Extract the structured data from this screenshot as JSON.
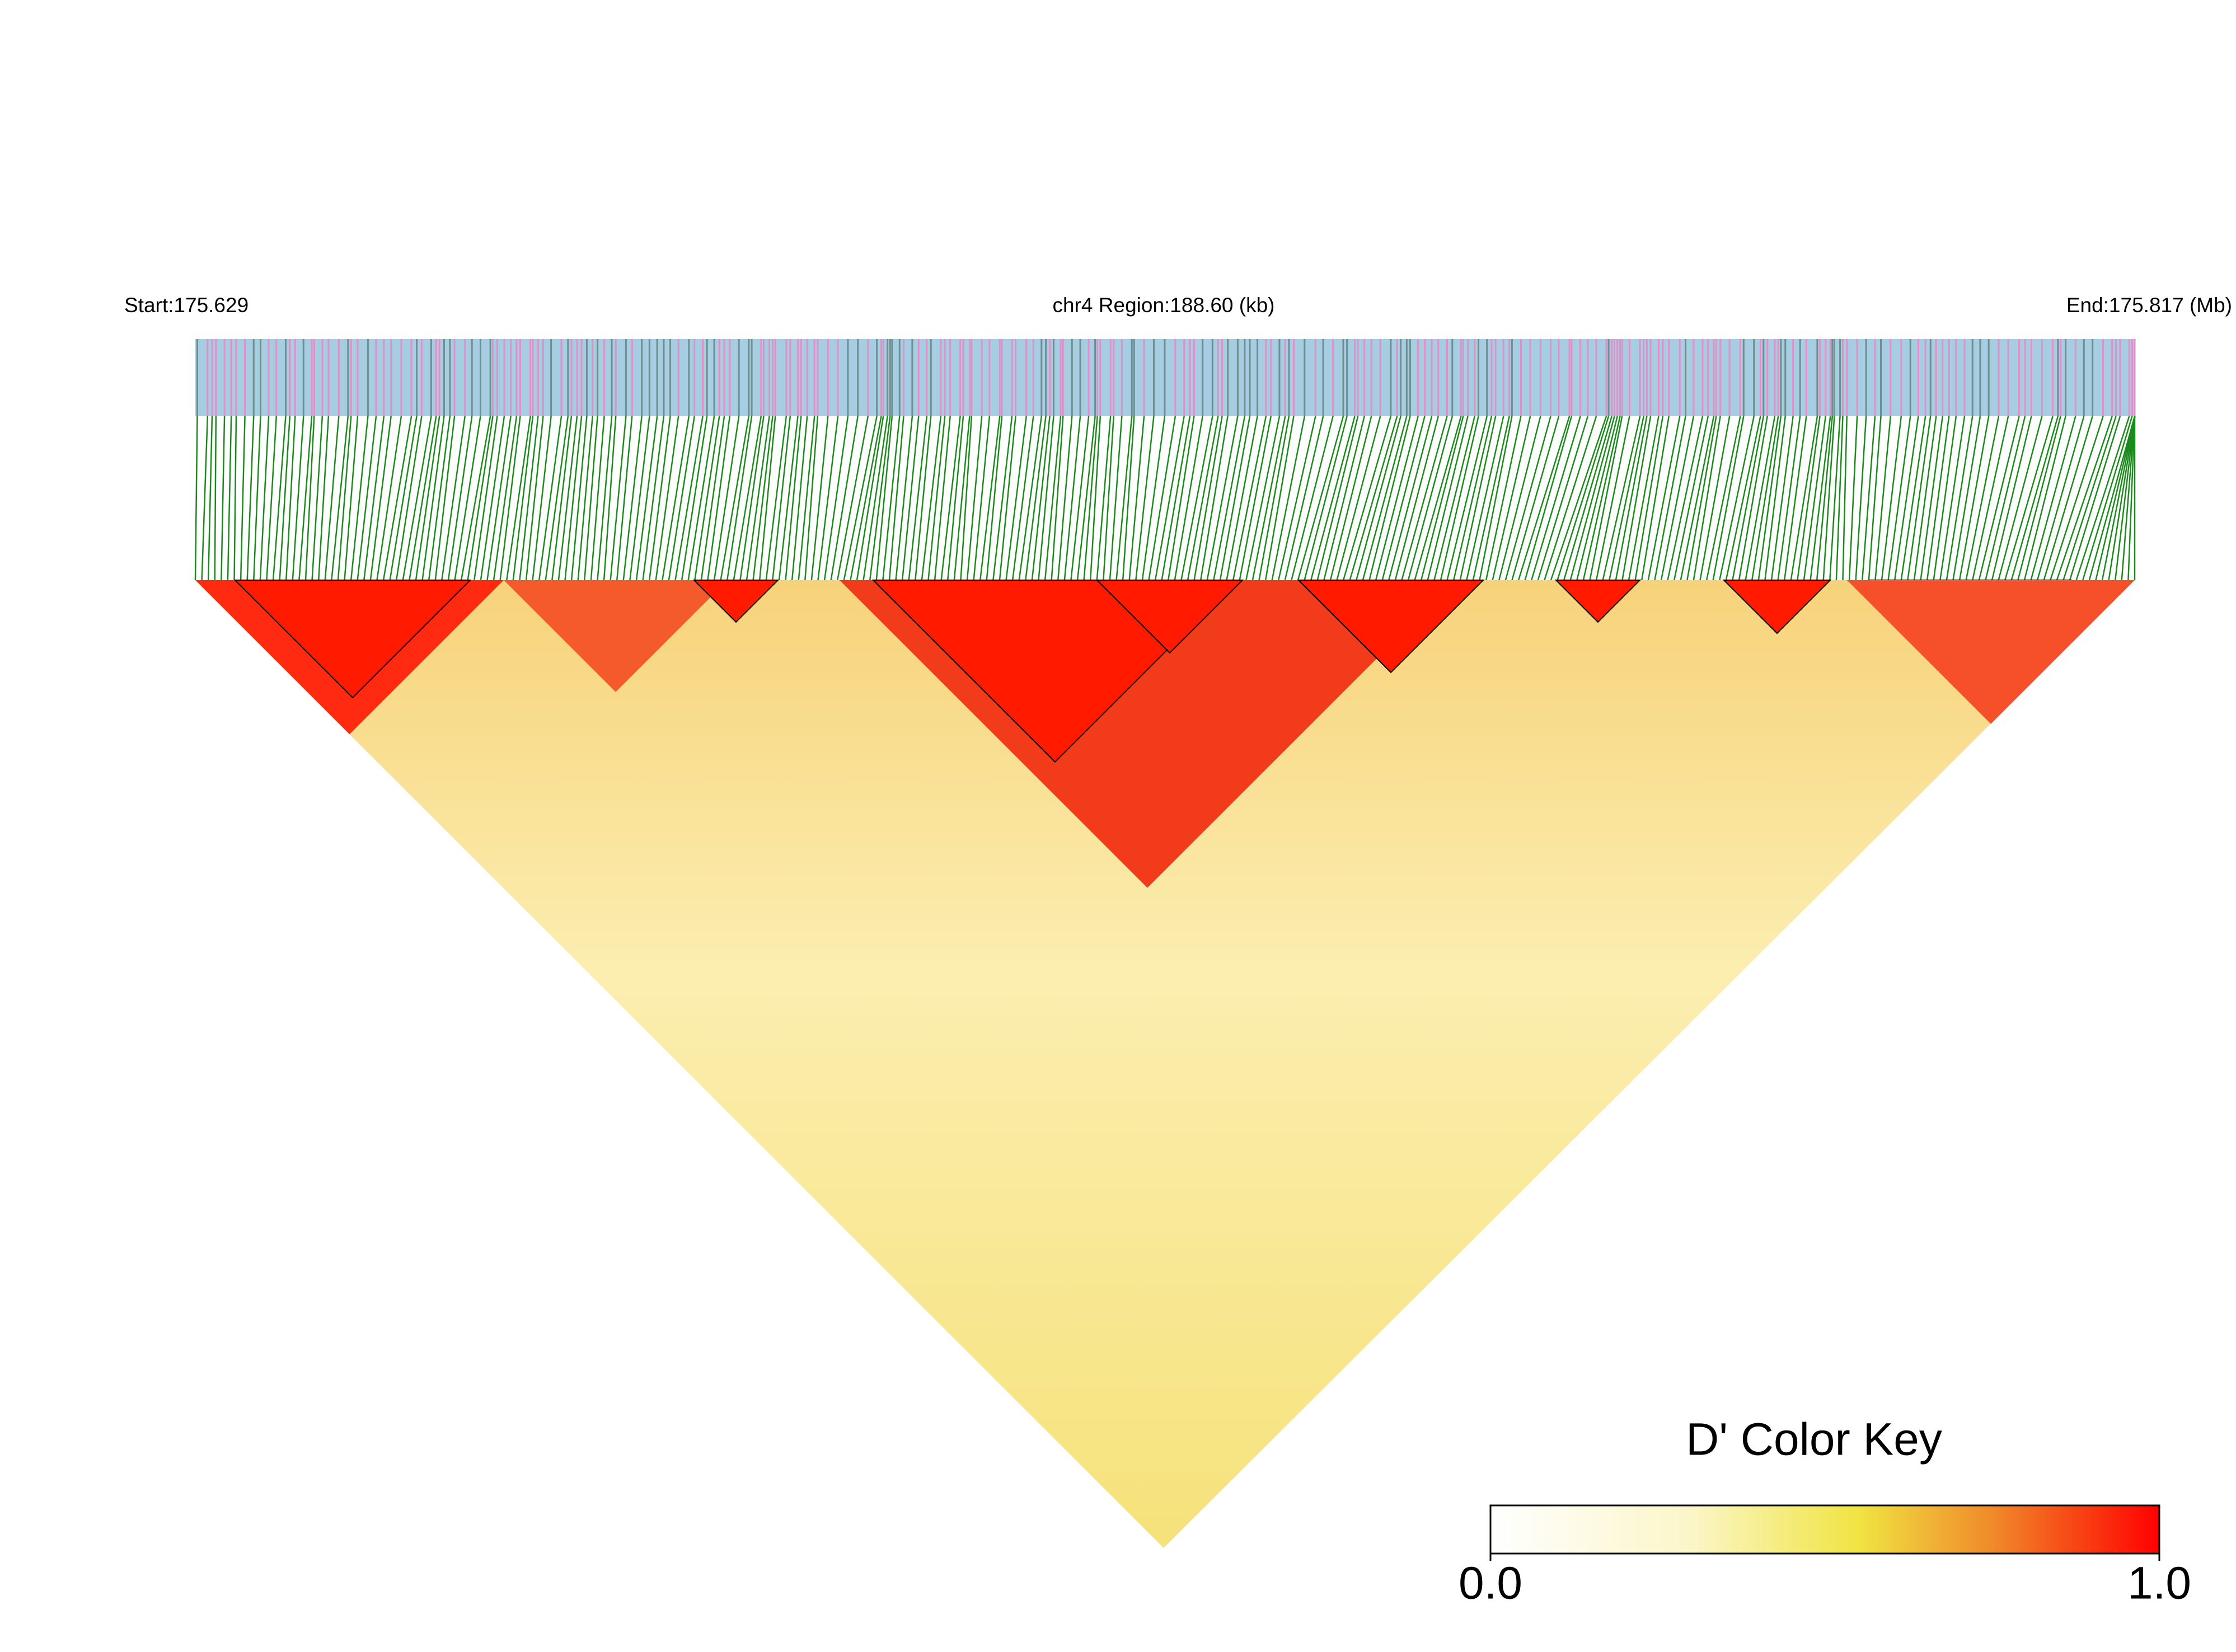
{
  "header": {
    "start": "Start:175.629",
    "region": "chr4 Region:188.60 (kb)",
    "end": "End:175.817 (Mb)"
  },
  "color_key": {
    "title": "D' Color Key",
    "ticks": [
      {
        "value": 0,
        "label": "0.0"
      },
      {
        "value": 1,
        "label": "1.0"
      }
    ]
  }
}
